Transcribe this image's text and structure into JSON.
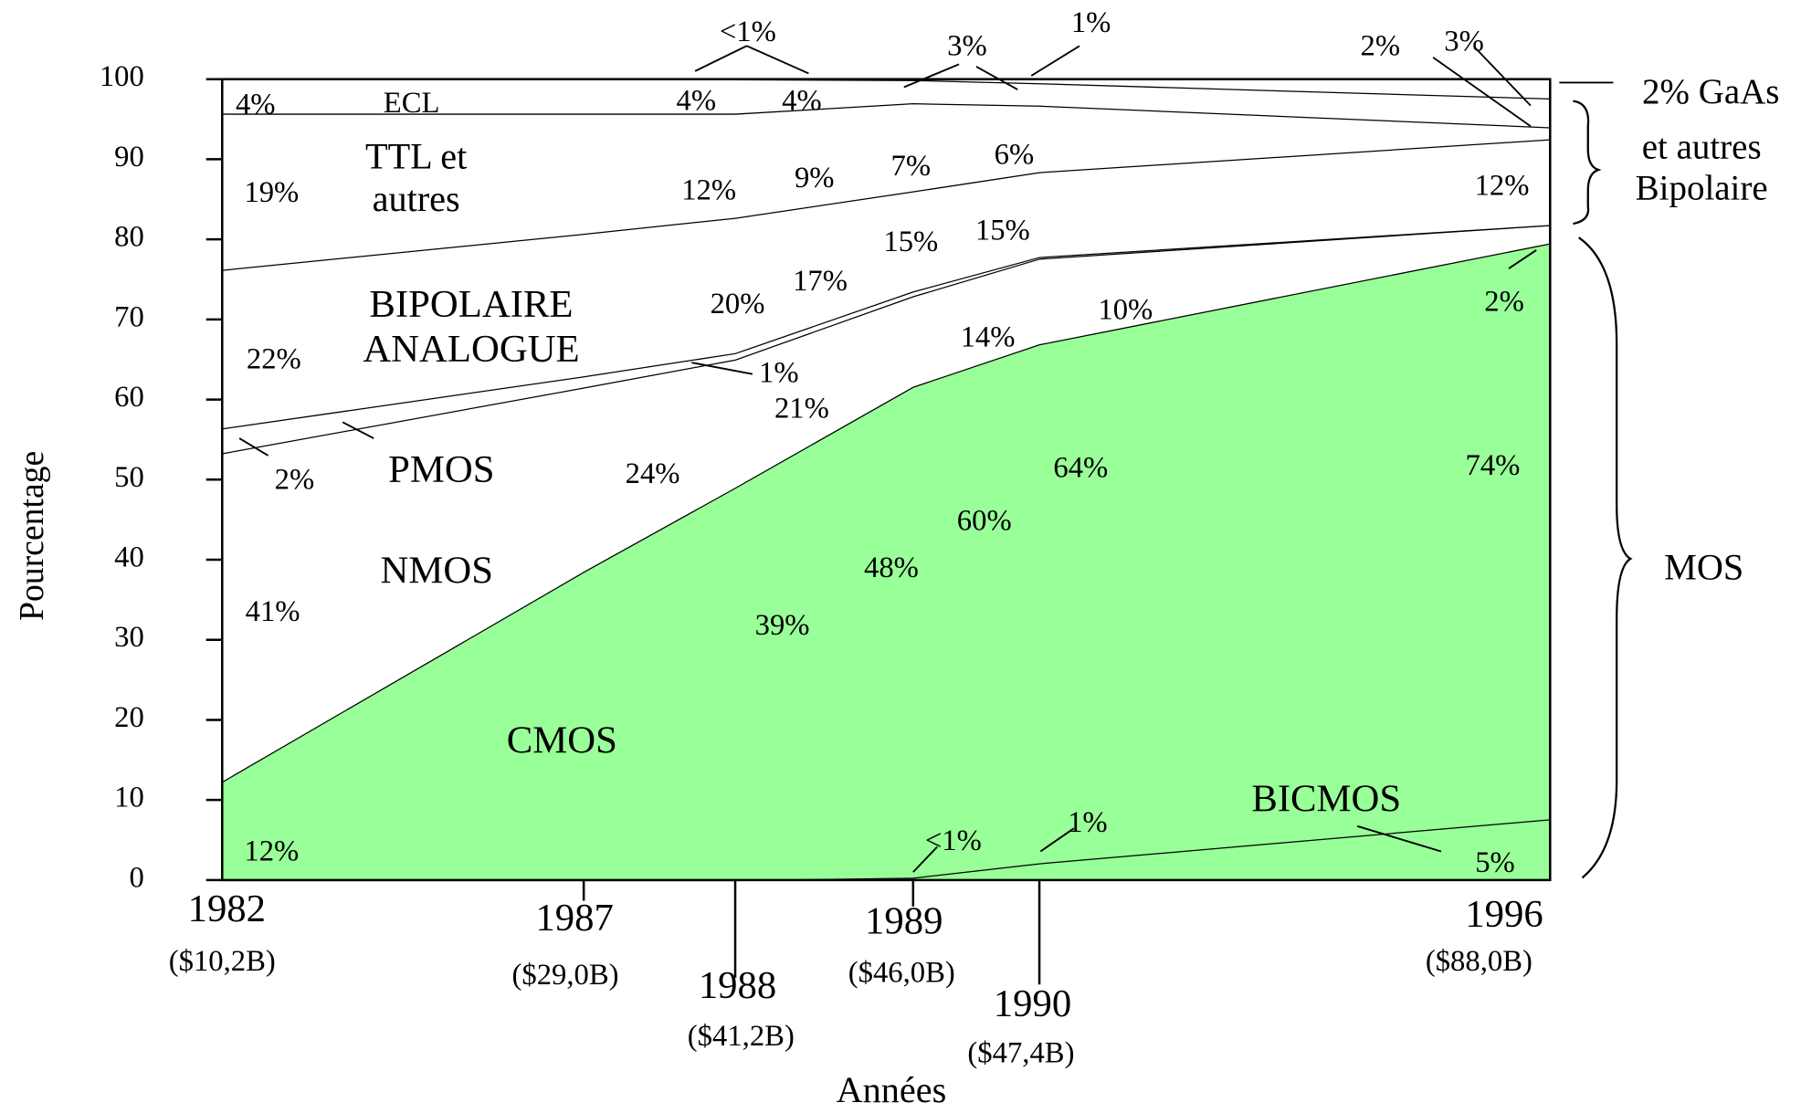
{
  "chart_data": {
    "type": "area",
    "stacked": true,
    "ylabel": "Pourcentage",
    "xlabel": "Années",
    "categories": [
      "1982",
      "1987",
      "1988",
      "1989",
      "1990",
      "1996"
    ],
    "category_sublabels": [
      "($10,2B)",
      "($29,0B)",
      "($41,2B)",
      "($46,0B)",
      "($47,4B)",
      "($88,0B)"
    ],
    "ylim": [
      0,
      100
    ],
    "yticks": [
      0,
      10,
      20,
      30,
      40,
      50,
      60,
      70,
      80,
      90,
      100
    ],
    "series": [
      {
        "name": "BICMOS",
        "color": "#99ff99",
        "values": [
          0,
          0,
          0,
          0.3,
          2.1,
          7.6
        ]
      },
      {
        "name": "CMOS",
        "color": "#99ff99",
        "values": [
          12.3,
          38.5,
          49,
          61.3,
          64.8,
          71.9
        ]
      },
      {
        "name": "NMOS",
        "color": "#ffffff",
        "values": [
          41,
          23,
          16,
          11.3,
          10.7,
          2.3
        ]
      },
      {
        "name": "PMOS",
        "color": "#ffffff",
        "values": [
          3.1,
          1.4,
          0.8,
          0.6,
          0.2,
          0
        ]
      },
      {
        "name": "BIPOLAIRE\nANALOGUE",
        "color": "#ffffff",
        "values": [
          19.8,
          17.8,
          16.9,
          12.5,
          10.6,
          10.7
        ]
      },
      {
        "name": "TTL et\nautres",
        "color": "#ffffff",
        "values": [
          19.5,
          15,
          13,
          11,
          8.3,
          1.5
        ]
      },
      {
        "name": "ECL",
        "color": "#ffffff",
        "values": [
          4.3,
          4.3,
          4.3,
          2.9,
          2.8,
          3.6
        ]
      },
      {
        "name": "2% GaAs",
        "color": "#ffffff",
        "values": [
          0,
          0,
          0,
          0.1,
          0.5,
          2.4
        ]
      }
    ],
    "annotations": [
      "4%",
      "4%",
      "4%",
      "<1%",
      "3%",
      "1%",
      "2%",
      "3%",
      "19%",
      "12%",
      "9%",
      "7%",
      "6%",
      "12%",
      "15%",
      "15%",
      "17%",
      "20%",
      "22%",
      "1%",
      "14%",
      "10%",
      "2%",
      "21%",
      "2%",
      "24%",
      "64%",
      "74%",
      "60%",
      "48%",
      "41%",
      "39%",
      "12%",
      "<1%",
      "1%",
      "5%"
    ],
    "group_labels": [
      "et autres\nBipolaire",
      "MOS"
    ]
  }
}
